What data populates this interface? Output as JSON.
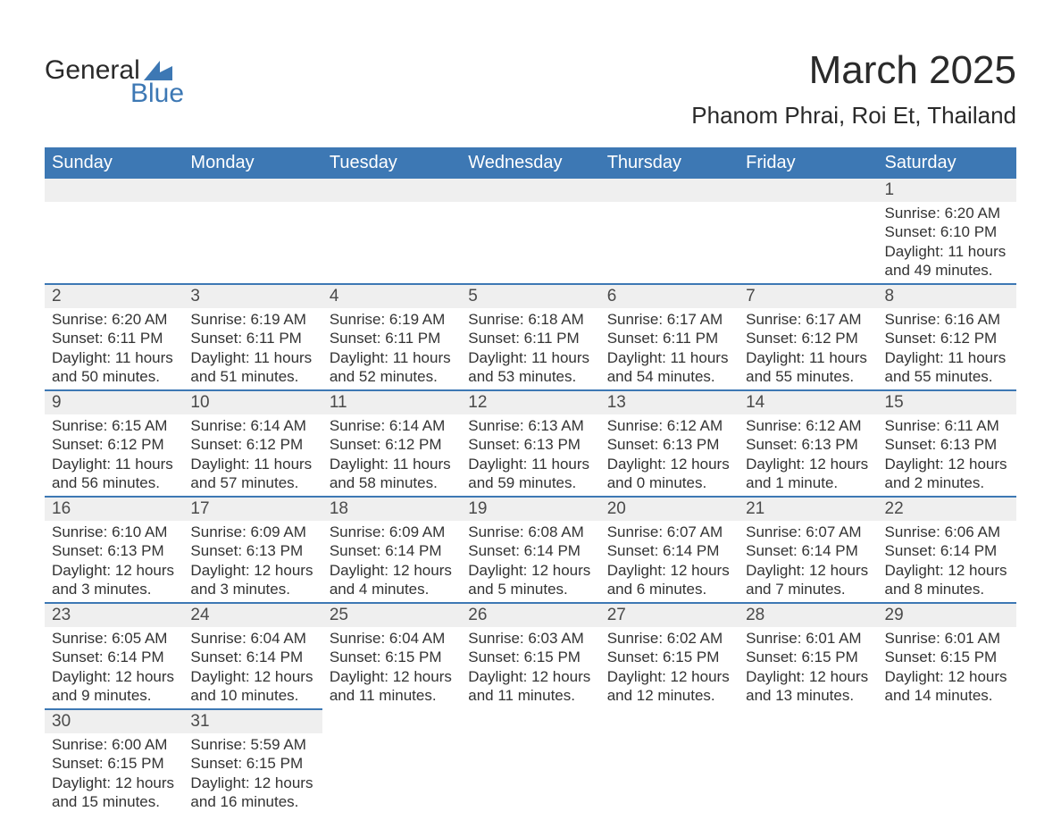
{
  "logo": {
    "text1": "General",
    "text2": "Blue",
    "accent_color": "#3d78b4"
  },
  "title": "March 2025",
  "location": "Phanom Phrai, Roi Et, Thailand",
  "colors": {
    "header_bg": "#3d78b4",
    "header_text": "#ffffff",
    "daynum_bg": "#efefef",
    "row_border": "#3d78b4",
    "text": "#333333"
  },
  "day_headers": [
    "Sunday",
    "Monday",
    "Tuesday",
    "Wednesday",
    "Thursday",
    "Friday",
    "Saturday"
  ],
  "weeks": [
    [
      null,
      null,
      null,
      null,
      null,
      null,
      {
        "n": "1",
        "sunrise": "Sunrise: 6:20 AM",
        "sunset": "Sunset: 6:10 PM",
        "daylight": "Daylight: 11 hours and 49 minutes."
      }
    ],
    [
      {
        "n": "2",
        "sunrise": "Sunrise: 6:20 AM",
        "sunset": "Sunset: 6:11 PM",
        "daylight": "Daylight: 11 hours and 50 minutes."
      },
      {
        "n": "3",
        "sunrise": "Sunrise: 6:19 AM",
        "sunset": "Sunset: 6:11 PM",
        "daylight": "Daylight: 11 hours and 51 minutes."
      },
      {
        "n": "4",
        "sunrise": "Sunrise: 6:19 AM",
        "sunset": "Sunset: 6:11 PM",
        "daylight": "Daylight: 11 hours and 52 minutes."
      },
      {
        "n": "5",
        "sunrise": "Sunrise: 6:18 AM",
        "sunset": "Sunset: 6:11 PM",
        "daylight": "Daylight: 11 hours and 53 minutes."
      },
      {
        "n": "6",
        "sunrise": "Sunrise: 6:17 AM",
        "sunset": "Sunset: 6:11 PM",
        "daylight": "Daylight: 11 hours and 54 minutes."
      },
      {
        "n": "7",
        "sunrise": "Sunrise: 6:17 AM",
        "sunset": "Sunset: 6:12 PM",
        "daylight": "Daylight: 11 hours and 55 minutes."
      },
      {
        "n": "8",
        "sunrise": "Sunrise: 6:16 AM",
        "sunset": "Sunset: 6:12 PM",
        "daylight": "Daylight: 11 hours and 55 minutes."
      }
    ],
    [
      {
        "n": "9",
        "sunrise": "Sunrise: 6:15 AM",
        "sunset": "Sunset: 6:12 PM",
        "daylight": "Daylight: 11 hours and 56 minutes."
      },
      {
        "n": "10",
        "sunrise": "Sunrise: 6:14 AM",
        "sunset": "Sunset: 6:12 PM",
        "daylight": "Daylight: 11 hours and 57 minutes."
      },
      {
        "n": "11",
        "sunrise": "Sunrise: 6:14 AM",
        "sunset": "Sunset: 6:12 PM",
        "daylight": "Daylight: 11 hours and 58 minutes."
      },
      {
        "n": "12",
        "sunrise": "Sunrise: 6:13 AM",
        "sunset": "Sunset: 6:13 PM",
        "daylight": "Daylight: 11 hours and 59 minutes."
      },
      {
        "n": "13",
        "sunrise": "Sunrise: 6:12 AM",
        "sunset": "Sunset: 6:13 PM",
        "daylight": "Daylight: 12 hours and 0 minutes."
      },
      {
        "n": "14",
        "sunrise": "Sunrise: 6:12 AM",
        "sunset": "Sunset: 6:13 PM",
        "daylight": "Daylight: 12 hours and 1 minute."
      },
      {
        "n": "15",
        "sunrise": "Sunrise: 6:11 AM",
        "sunset": "Sunset: 6:13 PM",
        "daylight": "Daylight: 12 hours and 2 minutes."
      }
    ],
    [
      {
        "n": "16",
        "sunrise": "Sunrise: 6:10 AM",
        "sunset": "Sunset: 6:13 PM",
        "daylight": "Daylight: 12 hours and 3 minutes."
      },
      {
        "n": "17",
        "sunrise": "Sunrise: 6:09 AM",
        "sunset": "Sunset: 6:13 PM",
        "daylight": "Daylight: 12 hours and 3 minutes."
      },
      {
        "n": "18",
        "sunrise": "Sunrise: 6:09 AM",
        "sunset": "Sunset: 6:14 PM",
        "daylight": "Daylight: 12 hours and 4 minutes."
      },
      {
        "n": "19",
        "sunrise": "Sunrise: 6:08 AM",
        "sunset": "Sunset: 6:14 PM",
        "daylight": "Daylight: 12 hours and 5 minutes."
      },
      {
        "n": "20",
        "sunrise": "Sunrise: 6:07 AM",
        "sunset": "Sunset: 6:14 PM",
        "daylight": "Daylight: 12 hours and 6 minutes."
      },
      {
        "n": "21",
        "sunrise": "Sunrise: 6:07 AM",
        "sunset": "Sunset: 6:14 PM",
        "daylight": "Daylight: 12 hours and 7 minutes."
      },
      {
        "n": "22",
        "sunrise": "Sunrise: 6:06 AM",
        "sunset": "Sunset: 6:14 PM",
        "daylight": "Daylight: 12 hours and 8 minutes."
      }
    ],
    [
      {
        "n": "23",
        "sunrise": "Sunrise: 6:05 AM",
        "sunset": "Sunset: 6:14 PM",
        "daylight": "Daylight: 12 hours and 9 minutes."
      },
      {
        "n": "24",
        "sunrise": "Sunrise: 6:04 AM",
        "sunset": "Sunset: 6:14 PM",
        "daylight": "Daylight: 12 hours and 10 minutes."
      },
      {
        "n": "25",
        "sunrise": "Sunrise: 6:04 AM",
        "sunset": "Sunset: 6:15 PM",
        "daylight": "Daylight: 12 hours and 11 minutes."
      },
      {
        "n": "26",
        "sunrise": "Sunrise: 6:03 AM",
        "sunset": "Sunset: 6:15 PM",
        "daylight": "Daylight: 12 hours and 11 minutes."
      },
      {
        "n": "27",
        "sunrise": "Sunrise: 6:02 AM",
        "sunset": "Sunset: 6:15 PM",
        "daylight": "Daylight: 12 hours and 12 minutes."
      },
      {
        "n": "28",
        "sunrise": "Sunrise: 6:01 AM",
        "sunset": "Sunset: 6:15 PM",
        "daylight": "Daylight: 12 hours and 13 minutes."
      },
      {
        "n": "29",
        "sunrise": "Sunrise: 6:01 AM",
        "sunset": "Sunset: 6:15 PM",
        "daylight": "Daylight: 12 hours and 14 minutes."
      }
    ],
    [
      {
        "n": "30",
        "sunrise": "Sunrise: 6:00 AM",
        "sunset": "Sunset: 6:15 PM",
        "daylight": "Daylight: 12 hours and 15 minutes."
      },
      {
        "n": "31",
        "sunrise": "Sunrise: 5:59 AM",
        "sunset": "Sunset: 6:15 PM",
        "daylight": "Daylight: 12 hours and 16 minutes."
      },
      null,
      null,
      null,
      null,
      null
    ]
  ]
}
